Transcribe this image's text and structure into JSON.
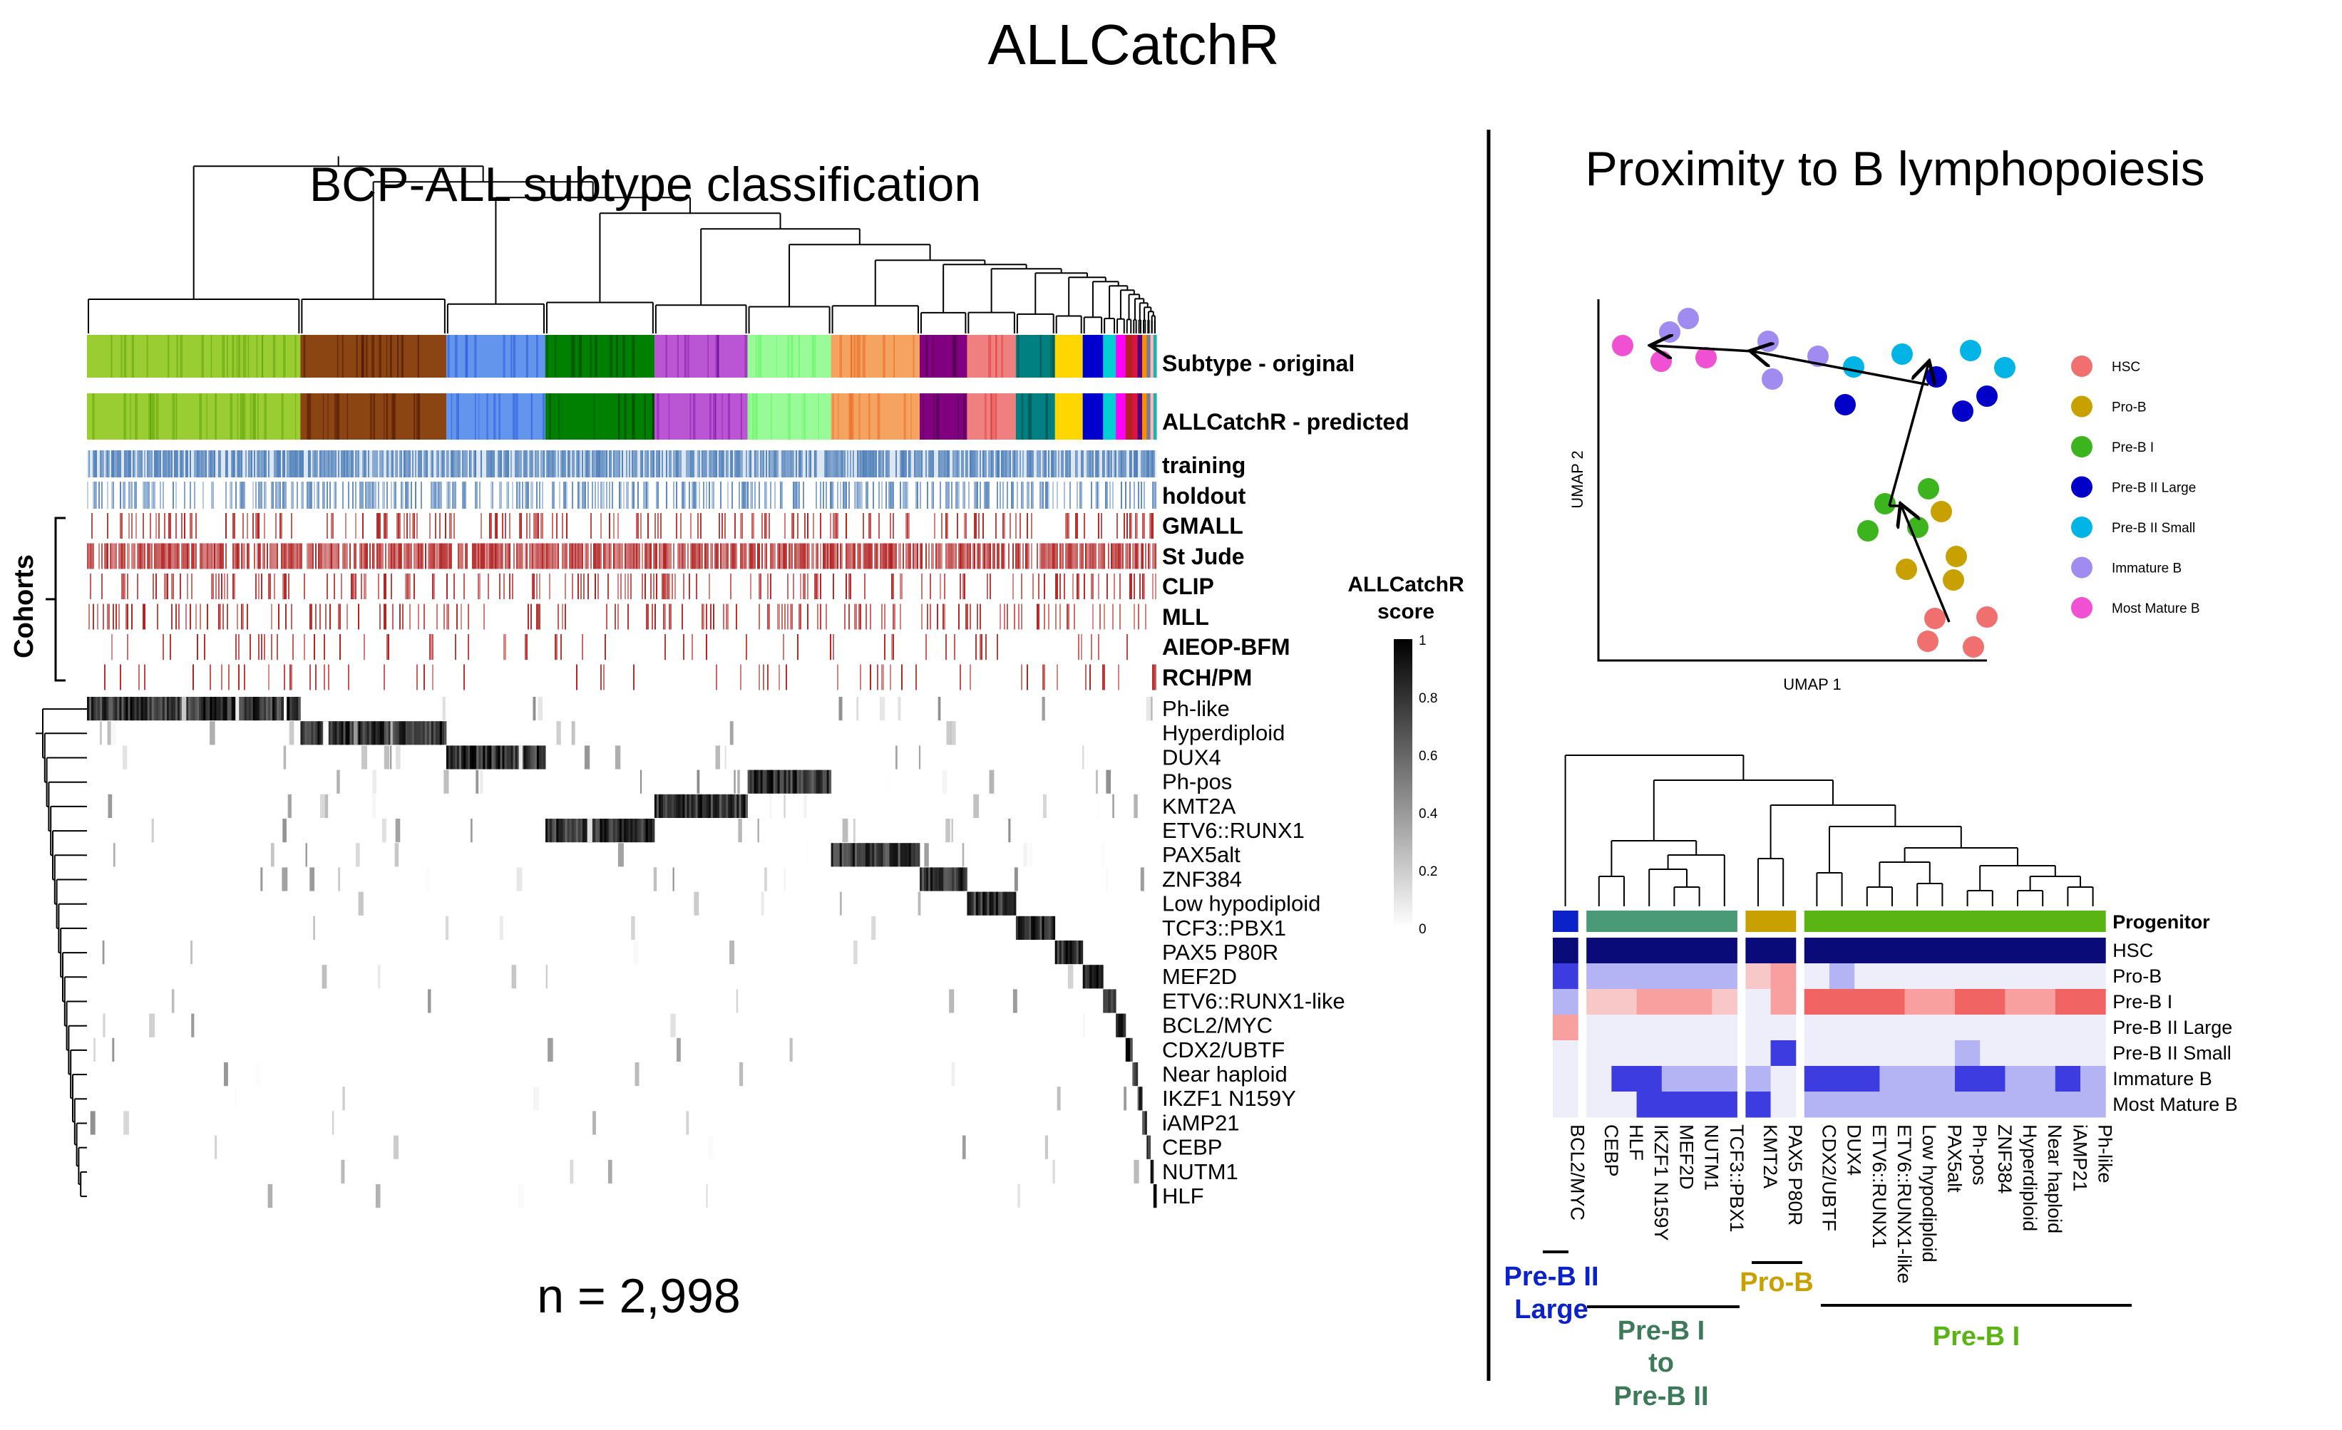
{
  "title": "ALLCatchR",
  "left": {
    "title": "BCP-ALL subtype classification",
    "n_label": "n = 2,998",
    "cohorts_label": "Cohorts",
    "annotation_labels": [
      "Subtype - original",
      "ALLCatchR - predicted",
      "training",
      "holdout",
      "GMALL",
      "St Jude",
      "CLIP",
      "MLL",
      "AIEOP-BFM",
      "RCH/PM"
    ],
    "subtype_rows": [
      "Ph-like",
      "Hyperdiploid",
      "DUX4",
      "Ph-pos",
      "KMT2A",
      "ETV6::RUNX1",
      "PAX5alt",
      "ZNF384",
      "Low hypodiploid",
      "TCF3::PBX1",
      "PAX5 P80R",
      "MEF2D",
      "ETV6::RUNX1-like",
      "BCL2/MYC",
      "CDX2/UBTF",
      "Near haploid",
      "IKZF1 N159Y",
      "iAMP21",
      "CEBP",
      "NUTM1",
      "HLF"
    ],
    "score_legend": {
      "title_line1": "ALLCatchR",
      "title_line2": "score",
      "ticks": [
        "1",
        "0.8",
        "0.6",
        "0.4",
        "0.2",
        "0"
      ]
    },
    "subtype_colors": [
      "#9ACD32",
      "#8B4513",
      "#6495ED",
      "#98FB98",
      "#BA55D3",
      "#008000",
      "#F4A460",
      "#800080",
      "#F08080",
      "#008080",
      "#FFD700",
      "#0000CD",
      "#00CED1",
      "#FF00FF",
      "#B22222",
      "#DC143C",
      "#4B0082",
      "#FF8C00",
      "#708090",
      "#FFB6C1",
      "#20B2AA"
    ],
    "colors": {
      "training": "#4F7FB8",
      "holdout": "#4F7FB8",
      "cohort": "#B22222"
    }
  },
  "right": {
    "title": "Proximity to B lymphopoiesis",
    "umap": {
      "xlabel": "UMAP 1",
      "ylabel": "UMAP 2",
      "legend": [
        {
          "label": "HSC",
          "color": "#F07070"
        },
        {
          "label": "Pro-B",
          "color": "#C8A000"
        },
        {
          "label": "Pre-B I",
          "color": "#3CB41E"
        },
        {
          "label": "Pre-B II Large",
          "color": "#0000C8"
        },
        {
          "label": "Pre-B II Small",
          "color": "#00B4E6"
        },
        {
          "label": "Immature B",
          "color": "#A08CF0"
        },
        {
          "label": "Most Mature B",
          "color": "#F050D2"
        }
      ]
    },
    "heatmap": {
      "columns": [
        "BCL2/MYC",
        "CEBP",
        "HLF",
        "IKZF1 N159Y",
        "MEF2D",
        "NUTM1",
        "TCF3::PBX1",
        "KMT2A",
        "PAX5 P80R",
        "CDX2/UBTF",
        "DUX4",
        "ETV6::RUNX1",
        "ETV6::RUNX1-like",
        "Low hypodiploid",
        "PAX5alt",
        "Ph-pos",
        "ZNF384",
        "Hyperdiploid",
        "Near haploid",
        "iAMP21",
        "Ph-like"
      ],
      "progenitor_label": "Progenitor",
      "rows": [
        "HSC",
        "Pro-B",
        "Pre-B I",
        "Pre-B II Large",
        "Pre-B II Small",
        "Immature B",
        "Most Mature B"
      ],
      "groups": [
        {
          "label_lines": [
            "Pre-B II",
            "Large"
          ],
          "color": "#0A22C8"
        },
        {
          "label_lines": [
            "Pre-B I",
            "to",
            "Pre-B II"
          ],
          "color": "#3C7A5A"
        },
        {
          "label_lines": [
            "Pro-B"
          ],
          "color": "#C8A000"
        },
        {
          "label_lines": [
            "Pre-B I"
          ],
          "color": "#5AB414"
        }
      ],
      "group_bar_colors": [
        "#0A22C8",
        "#4A9A78",
        "#C8A000",
        "#5AB414"
      ]
    }
  }
}
